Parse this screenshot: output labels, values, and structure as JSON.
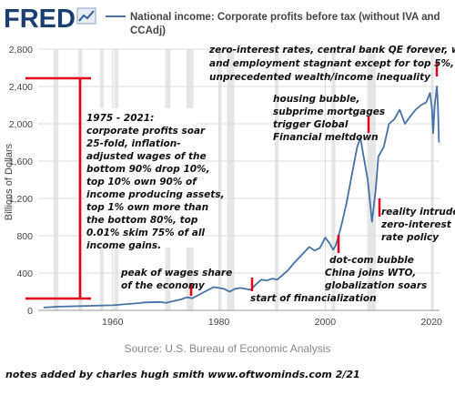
{
  "brand": "FRED",
  "chart_data": {
    "type": "line",
    "title": "National income: Corporate profits before tax (without IVA and CCAdj)",
    "title_line1": "National income: Corporate profits before tax (without IVA and",
    "title_line2": "CCAdj)",
    "xlabel": "",
    "ylabel": "Billions of Dollars",
    "source": "Source: U.S. Bureau of Economic Analysis",
    "xlim": [
      1946,
      2021.5
    ],
    "ylim": [
      0,
      2800
    ],
    "grid": true,
    "x_ticks": [
      1960,
      1980,
      2000,
      2020
    ],
    "y_ticks": [
      0,
      400,
      800,
      1200,
      1600,
      2000,
      2400,
      2800
    ],
    "x_tick_labels": [
      "1960",
      "1980",
      "2000",
      "2020"
    ],
    "y_tick_labels": [
      "0",
      "400",
      "800",
      "1,200",
      "1,600",
      "2,000",
      "2,400",
      "2,800"
    ],
    "recessions": [
      [
        1948.9,
        1949.8
      ],
      [
        1953.5,
        1954.3
      ],
      [
        1957.6,
        1958.3
      ],
      [
        1960.3,
        1961.1
      ],
      [
        1969.9,
        1970.9
      ],
      [
        1973.9,
        1975.2
      ],
      [
        1980.0,
        1980.5
      ],
      [
        1981.5,
        1982.9
      ],
      [
        1990.5,
        1991.2
      ],
      [
        2001.2,
        2001.9
      ],
      [
        2007.9,
        2009.5
      ],
      [
        2020.1,
        2020.4
      ]
    ],
    "series": [
      {
        "name": "National income: Corporate profits before tax (without IVA and CCAdj)",
        "color": "#4572a7",
        "points": [
          [
            1947,
            30
          ],
          [
            1950,
            40
          ],
          [
            1955,
            48
          ],
          [
            1960,
            55
          ],
          [
            1965,
            78
          ],
          [
            1966,
            85
          ],
          [
            1969,
            90
          ],
          [
            1970,
            80
          ],
          [
            1973,
            120
          ],
          [
            1974,
            140
          ],
          [
            1975,
            130
          ],
          [
            1977,
            190
          ],
          [
            1979,
            250
          ],
          [
            1980,
            240
          ],
          [
            1981,
            230
          ],
          [
            1982,
            200
          ],
          [
            1983,
            230
          ],
          [
            1984,
            240
          ],
          [
            1986,
            220
          ],
          [
            1987,
            280
          ],
          [
            1988,
            330
          ],
          [
            1989,
            320
          ],
          [
            1990,
            340
          ],
          [
            1991,
            330
          ],
          [
            1992,
            380
          ],
          [
            1993,
            430
          ],
          [
            1994,
            500
          ],
          [
            1995,
            560
          ],
          [
            1996,
            620
          ],
          [
            1997,
            680
          ],
          [
            1998,
            640
          ],
          [
            1999,
            670
          ],
          [
            2000,
            780
          ],
          [
            2000.8,
            720
          ],
          [
            2001.5,
            650
          ],
          [
            2002,
            700
          ],
          [
            2003,
            900
          ],
          [
            2004,
            1150
          ],
          [
            2005,
            1450
          ],
          [
            2006,
            1750
          ],
          [
            2006.6,
            1850
          ],
          [
            2007,
            1720
          ],
          [
            2008,
            1400
          ],
          [
            2008.8,
            950
          ],
          [
            2009.5,
            1300
          ],
          [
            2010,
            1650
          ],
          [
            2011,
            1750
          ],
          [
            2012,
            2000
          ],
          [
            2013,
            2050
          ],
          [
            2014,
            2150
          ],
          [
            2015,
            2000
          ],
          [
            2016,
            2080
          ],
          [
            2017,
            2150
          ],
          [
            2018,
            2200
          ],
          [
            2019,
            2230
          ],
          [
            2019.7,
            2330
          ],
          [
            2020.1,
            2150
          ],
          [
            2020.3,
            1900
          ],
          [
            2020.6,
            2200
          ],
          [
            2021,
            2400
          ],
          [
            2021.2,
            2200
          ],
          [
            2021.4,
            1800
          ]
        ]
      }
    ],
    "annotations": [
      {
        "lines": [
          "zero-interest rates, central bank QE forever, wages",
          "and employment stagnant except for top 5%,",
          "unprecedented wealth/income  inequality"
        ]
      },
      {
        "lines": [
          "1975 - 2021:",
          "corporate profits soar",
          "25-fold, inflation-",
          "adjusted wages of the",
          "bottom 90% drop 10%,",
          "top 10% own 90% of",
          "income producing assets,",
          "top 1% own more than",
          "the bottom 80%, top",
          "0.01% skim 75% of all",
          "income gains."
        ]
      },
      {
        "lines": [
          "housing bubble,",
          "subprime mortgages",
          "trigger Global",
          "Financial meltdown"
        ]
      },
      {
        "lines": [
          "reality intrudes,",
          "zero-interest",
          "rate policy"
        ]
      },
      {
        "lines": [
          "dot-com bubble",
          "China joins WTO,",
          "globalization soars"
        ]
      },
      {
        "lines": [
          "peak of wages share",
          "of the economy"
        ]
      },
      {
        "lines": [
          "start of financialization"
        ]
      }
    ]
  },
  "footer": "notes added by charles hugh smith  www.oftwominds.com    2/21"
}
